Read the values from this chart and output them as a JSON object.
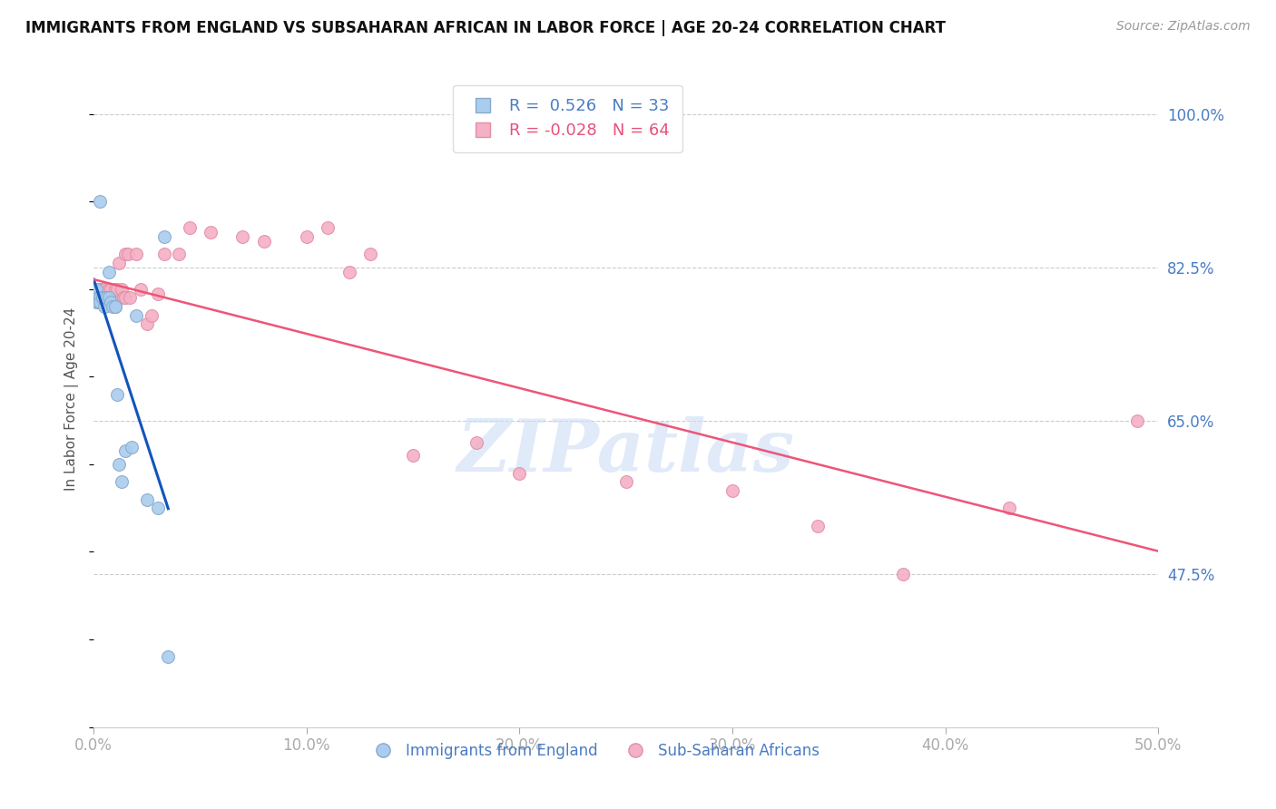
{
  "title": "IMMIGRANTS FROM ENGLAND VS SUBSAHARAN AFRICAN IN LABOR FORCE | AGE 20-24 CORRELATION CHART",
  "source": "Source: ZipAtlas.com",
  "ylabel": "In Labor Force | Age 20-24",
  "xlim": [
    0.0,
    0.5
  ],
  "ylim": [
    0.3,
    1.05
  ],
  "yticks": [
    0.475,
    0.65,
    0.825,
    1.0
  ],
  "ytick_labels": [
    "47.5%",
    "65.0%",
    "82.5%",
    "100.0%"
  ],
  "xticks": [
    0.0,
    0.1,
    0.2,
    0.3,
    0.4,
    0.5
  ],
  "xtick_labels": [
    "0.0%",
    "10.0%",
    "20.0%",
    "30.0%",
    "40.0%",
    "50.0%"
  ],
  "england_R": 0.526,
  "england_N": 33,
  "subsaharan_R": -0.028,
  "subsaharan_N": 64,
  "england_x": [
    0.0,
    0.0,
    0.001,
    0.001,
    0.001,
    0.001,
    0.001,
    0.002,
    0.002,
    0.003,
    0.003,
    0.003,
    0.004,
    0.004,
    0.005,
    0.006,
    0.006,
    0.007,
    0.007,
    0.008,
    0.009,
    0.01,
    0.01,
    0.011,
    0.012,
    0.013,
    0.015,
    0.018,
    0.02,
    0.025,
    0.03,
    0.033,
    0.035
  ],
  "england_y": [
    0.79,
    0.795,
    0.79,
    0.79,
    0.79,
    0.8,
    0.785,
    0.785,
    0.79,
    0.9,
    0.79,
    0.785,
    0.79,
    0.79,
    0.78,
    0.79,
    0.79,
    0.82,
    0.79,
    0.785,
    0.78,
    0.78,
    0.78,
    0.68,
    0.6,
    0.58,
    0.615,
    0.62,
    0.77,
    0.56,
    0.55,
    0.86,
    0.38
  ],
  "subsaharan_x": [
    0.0,
    0.001,
    0.001,
    0.001,
    0.001,
    0.001,
    0.002,
    0.002,
    0.002,
    0.002,
    0.003,
    0.003,
    0.003,
    0.003,
    0.004,
    0.004,
    0.004,
    0.004,
    0.005,
    0.005,
    0.005,
    0.006,
    0.006,
    0.007,
    0.007,
    0.007,
    0.008,
    0.008,
    0.008,
    0.009,
    0.01,
    0.01,
    0.011,
    0.012,
    0.013,
    0.014,
    0.015,
    0.015,
    0.016,
    0.017,
    0.02,
    0.022,
    0.025,
    0.027,
    0.03,
    0.033,
    0.04,
    0.045,
    0.055,
    0.07,
    0.08,
    0.1,
    0.11,
    0.12,
    0.13,
    0.15,
    0.18,
    0.2,
    0.25,
    0.3,
    0.34,
    0.38,
    0.43,
    0.49
  ],
  "subsaharan_y": [
    0.79,
    0.79,
    0.79,
    0.79,
    0.79,
    0.8,
    0.79,
    0.79,
    0.8,
    0.79,
    0.79,
    0.79,
    0.79,
    0.8,
    0.79,
    0.79,
    0.79,
    0.8,
    0.79,
    0.79,
    0.8,
    0.79,
    0.79,
    0.79,
    0.8,
    0.79,
    0.79,
    0.8,
    0.79,
    0.79,
    0.79,
    0.8,
    0.8,
    0.83,
    0.8,
    0.79,
    0.84,
    0.79,
    0.84,
    0.79,
    0.84,
    0.8,
    0.76,
    0.77,
    0.795,
    0.84,
    0.84,
    0.87,
    0.865,
    0.86,
    0.855,
    0.86,
    0.87,
    0.82,
    0.84,
    0.61,
    0.625,
    0.59,
    0.58,
    0.57,
    0.53,
    0.475,
    0.55,
    0.65
  ],
  "england_dot_color": "#aaccee",
  "england_dot_edgecolor": "#88aacc",
  "subsaharan_dot_color": "#f4b0c4",
  "subsaharan_dot_edgecolor": "#e090a8",
  "england_line_color": "#1155bb",
  "subsaharan_line_color": "#ee5577",
  "grid_color": "#cccccc",
  "bg_color": "#ffffff",
  "watermark_text": "ZIPatlas",
  "watermark_color": "#ccddf5",
  "dot_size": 100
}
